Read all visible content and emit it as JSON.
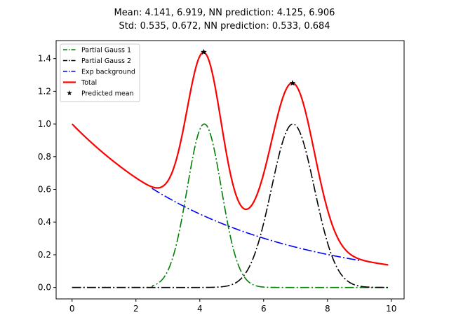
{
  "chart_data": {
    "type": "line",
    "title_lines": [
      "Mean: 4.141, 6.919, NN prediction: 4.125, 6.906",
      "Std: 0.535, 0.672, NN prediction: 0.533, 0.684"
    ],
    "xlabel": "",
    "ylabel": "",
    "xlim": [
      -0.5,
      10.4
    ],
    "ylim": [
      -0.07,
      1.51
    ],
    "xticks": [
      0,
      2,
      4,
      6,
      8,
      10
    ],
    "yticks": [
      0.0,
      0.2,
      0.4,
      0.6,
      0.8,
      1.0,
      1.2,
      1.4
    ],
    "grid": false,
    "legend_position": "upper-left",
    "x_range": [
      0,
      9.9
    ],
    "components": {
      "gauss1": {
        "amplitude": 1.0,
        "mean": 4.141,
        "std": 0.535,
        "visible_from_x": 2.5
      },
      "gauss2": {
        "amplitude": 1.0,
        "mean": 6.919,
        "std": 0.672
      },
      "exp_background": {
        "amplitude": 1.0,
        "rate": 0.2,
        "visible_from_x": 2.5,
        "visible_to_x": 9.0
      }
    },
    "series": [
      {
        "name": "Partial Gauss 1",
        "color": "#008000",
        "style": "dashdot"
      },
      {
        "name": "Partial Gauss 2",
        "color": "#000000",
        "style": "dashdot"
      },
      {
        "name": "Exp background",
        "color": "#0000ff",
        "style": "dashdot"
      },
      {
        "name": "Total",
        "color": "#ff0000",
        "style": "solid"
      },
      {
        "name": "Predicted mean",
        "color": "#000000",
        "style": "star-marker"
      }
    ],
    "predicted_means": [
      {
        "x": 4.125,
        "y": 1.44
      },
      {
        "x": 6.906,
        "y": 1.25
      }
    ]
  }
}
